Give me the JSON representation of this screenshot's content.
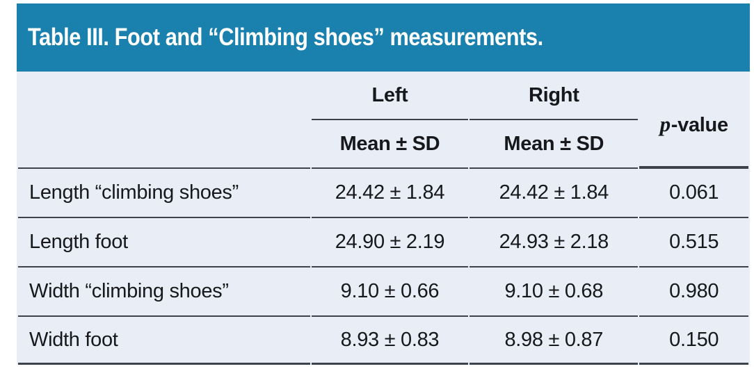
{
  "theme": {
    "header_bg": "#1a80ae",
    "body_bg": "#e9edf6",
    "rule_color": "#3d434c",
    "title_color": "#ffffff",
    "text_color": "#16181b"
  },
  "table": {
    "title": "Table III. Foot and “Climbing shoes” measurements.",
    "columns": {
      "left_label": "Left",
      "right_label": "Right",
      "subheader": "Mean ± SD",
      "pvalue_italic": "p",
      "pvalue_rest": "-value"
    },
    "rows": [
      {
        "label": "Length “climbing shoes”",
        "left": "24.42 ± 1.84",
        "right": "24.42 ± 1.84",
        "p": "0.061"
      },
      {
        "label": "Length foot",
        "left": "24.90 ± 2.19",
        "right": "24.93 ± 2.18",
        "p": "0.515"
      },
      {
        "label": "Width “climbing shoes”",
        "left": "9.10 ± 0.66",
        "right": "9.10 ± 0.68",
        "p": "0.980"
      },
      {
        "label": "Width foot",
        "left": "8.93 ± 0.83",
        "right": "8.98 ± 0.87",
        "p": "0.150"
      }
    ]
  }
}
